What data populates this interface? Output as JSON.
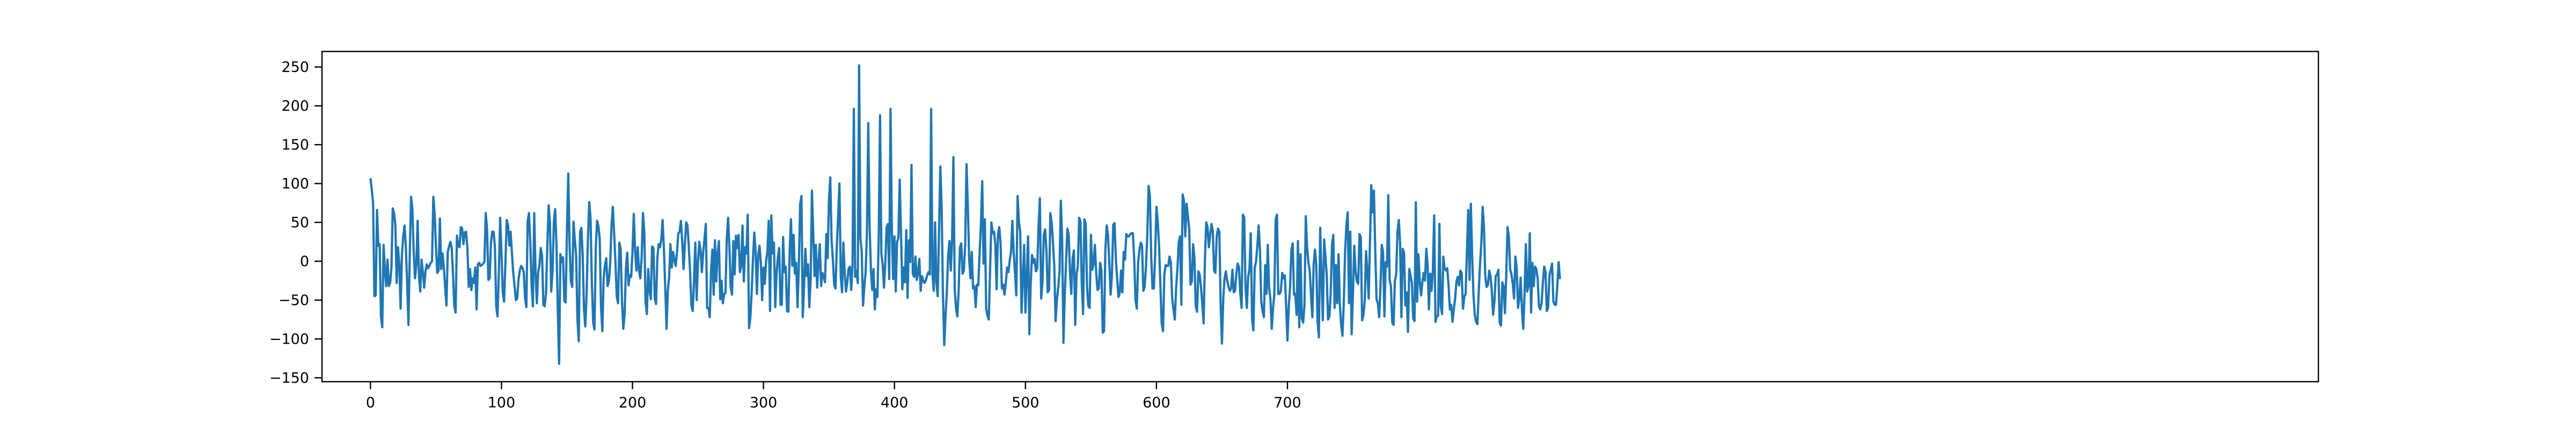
{
  "chart_data": {
    "type": "line",
    "title": "",
    "xlabel": "",
    "ylabel": "",
    "xlim": [
      -37,
      1487
    ],
    "ylim": [
      -155,
      270
    ],
    "x_ticks": [
      0,
      100,
      200,
      300,
      400,
      500,
      600,
      700
    ],
    "x_tick_labels": [
      "0",
      "100",
      "200",
      "300",
      "400",
      "500",
      "600",
      "700"
    ],
    "y_ticks": [
      -150,
      -100,
      -50,
      0,
      50,
      100,
      150,
      200,
      250
    ],
    "y_tick_labels": [
      "−150",
      "−100",
      "−50",
      "0",
      "50",
      "100",
      "150",
      "200",
      "250"
    ],
    "grid": false,
    "legend": "none",
    "series": [
      {
        "color": "#1f77b4",
        "x_start": 0,
        "x_step": 1,
        "values": [
          107,
          92,
          75,
          -45,
          -44,
          66,
          20,
          22,
          -71,
          -85,
          21,
          -11,
          -32,
          2,
          -32,
          -28,
          -9,
          68,
          62,
          47,
          -28,
          18,
          -4,
          -61,
          8,
          32,
          46,
          19,
          -29,
          -82,
          9,
          83,
          67,
          12,
          -22,
          -5,
          52,
          -18,
          -39,
          2,
          -14,
          -34,
          -13,
          -4,
          -9,
          -6,
          -2,
          0,
          83,
          60,
          18,
          -15,
          -12,
          55,
          -10,
          10,
          -8,
          -33,
          -57,
          12,
          19,
          25,
          17,
          -16,
          -58,
          -66,
          33,
          20,
          18,
          44,
          42,
          22,
          37,
          38,
          17,
          -33,
          -10,
          -37,
          -22,
          -28,
          -8,
          -62,
          -4,
          -2,
          -6,
          -5,
          -3,
          -1,
          62,
          42,
          -24,
          -22,
          24,
          38,
          38,
          18,
          -58,
          -71,
          -14,
          56,
          10,
          -40,
          -52,
          -3,
          53,
          47,
          20,
          38,
          10,
          -15,
          -32,
          -50,
          -48,
          -24,
          -12,
          -6,
          -8,
          -14,
          -47,
          -59,
          51,
          62,
          25,
          -31,
          -58,
          62,
          -13,
          -54,
          -14,
          -5,
          17,
          7,
          -56,
          -58,
          -41,
          19,
          72,
          50,
          -39,
          -11,
          51,
          67,
          20,
          -63,
          -132,
          9,
          -1,
          5,
          -51,
          -53,
          40,
          113,
          20,
          -26,
          -33,
          51,
          27,
          8,
          -75,
          -103,
          38,
          43,
          8,
          -62,
          -84,
          -42,
          28,
          76,
          56,
          -27,
          -79,
          -88,
          17,
          52,
          45,
          29,
          -59,
          -90,
          -22,
          -5,
          4,
          -32,
          -26,
          -3,
          46,
          70,
          36,
          0,
          -45,
          -54,
          24,
          16,
          -52,
          -87,
          -69,
          -9,
          11,
          -31,
          -18,
          -20,
          11,
          61,
          14,
          -12,
          18,
          -12,
          -22,
          5,
          62,
          39,
          -52,
          -68,
          -10,
          -37,
          -49,
          19,
          17,
          -48,
          -55,
          4,
          22,
          18,
          28,
          53,
          16,
          -32,
          -87,
          -38,
          -20,
          22,
          -8,
          12,
          2,
          -6,
          12,
          36,
          38,
          52,
          25,
          -10,
          22,
          50,
          46,
          19,
          -14,
          -57,
          -64,
          -24,
          24,
          -50,
          -2,
          25,
          14,
          -14,
          12,
          29,
          48,
          -60,
          -60,
          -72,
          -13,
          15,
          -43,
          27,
          -26,
          10,
          26,
          -49,
          -25,
          -54,
          -43,
          -40,
          29,
          56,
          19,
          -34,
          -43,
          26,
          -17,
          33,
          17,
          34,
          -14,
          -7,
          46,
          -26,
          18,
          10,
          60,
          -86,
          -73,
          -40,
          3,
          37,
          12,
          -42,
          8,
          20,
          -2,
          -50,
          -8,
          -29,
          0,
          12,
          52,
          -64,
          59,
          10,
          24,
          -59,
          -16,
          5,
          17,
          -56,
          -56,
          31,
          -14,
          -7,
          -64,
          -65,
          14,
          54,
          -6,
          34,
          -16,
          -2,
          -59,
          -7,
          73,
          84,
          -72,
          -32,
          16,
          -19,
          -4,
          -59,
          -25,
          91,
          37,
          -19,
          21,
          -34,
          -2,
          22,
          -32,
          -15,
          -20,
          -27,
          35,
          4,
          79,
          108,
          27,
          2,
          -31,
          -35,
          19,
          58,
          100,
          -19,
          -40,
          24,
          -14,
          -39,
          -27,
          -9,
          -7,
          -37,
          -4,
          196,
          -20,
          -12,
          -28,
          252,
          30,
          13,
          -57,
          -33,
          -14,
          38,
          178,
          47,
          -10,
          -37,
          -10,
          -62,
          -36,
          -46,
          32,
          188,
          10,
          -4,
          -34,
          -2,
          44,
          48,
          -23,
          196,
          41,
          -23,
          32,
          -39,
          25,
          30,
          105,
          35,
          -36,
          -8,
          -27,
          40,
          -47,
          27,
          -1,
          124,
          -16,
          -20,
          6,
          -24,
          -15,
          3,
          -38,
          -19,
          -25,
          -28,
          -24,
          -18,
          -14,
          -17,
          196,
          -16,
          -38,
          50,
          -27,
          -45,
          36,
          122,
          71,
          -42,
          -108,
          -70,
          -39,
          8,
          26,
          -12,
          28,
          134,
          -36,
          -61,
          -71,
          -38,
          18,
          23,
          -16,
          -12,
          22,
          125,
          72,
          4,
          -22,
          12,
          -35,
          -32,
          -59,
          -30,
          -31,
          10,
          48,
          103,
          -3,
          54,
          -61,
          -70,
          -75,
          -11,
          50,
          36,
          38,
          22,
          -36,
          34,
          44,
          23,
          -35,
          -30,
          -43,
          -28,
          -8,
          -14,
          1,
          12,
          52,
          12,
          -14,
          -44,
          84,
          51,
          38,
          -66,
          -24,
          21,
          -66,
          -20,
          32,
          -94,
          -29,
          8,
          -2,
          3,
          -13,
          -9,
          46,
          81,
          -48,
          -26,
          34,
          41,
          15,
          -40,
          -37,
          62,
          50,
          24,
          -6,
          -77,
          -50,
          -34,
          -14,
          78,
          28,
          -105,
          -44,
          -1,
          42,
          34,
          -15,
          -42,
          4,
          14,
          -82,
          -17,
          -6,
          56,
          51,
          -30,
          -68,
          54,
          48,
          -32,
          -58,
          -60,
          34,
          -11,
          -3,
          21,
          -15,
          -37,
          -35,
          -2,
          -12,
          -92,
          -90,
          15,
          46,
          34,
          -2,
          -43,
          -18,
          47,
          49,
          4,
          -22,
          -46,
          -40,
          -12,
          -40,
          12,
          2,
          35,
          32,
          32,
          35,
          36,
          36,
          4,
          -50,
          -61,
          -2,
          14,
          24,
          20,
          -38,
          -33,
          -7,
          34,
          97,
          84,
          6,
          -35,
          -35,
          8,
          70,
          51,
          20,
          -31,
          -80,
          -90,
          -18,
          -5,
          -6,
          -6,
          6,
          -2,
          -48,
          -62,
          -75,
          -35,
          -10,
          24,
          32,
          -56,
          86,
          78,
          32,
          74,
          58,
          41,
          -30,
          -26,
          22,
          4,
          -58,
          -65,
          -13,
          -17,
          -33,
          -55,
          -80,
          2,
          50,
          44,
          18,
          34,
          48,
          39,
          -12,
          -15,
          32,
          42,
          38,
          -56,
          -106,
          -48,
          -22,
          -13,
          -25,
          -33,
          -38,
          -35,
          -11,
          -40,
          -38,
          -16,
          -3,
          -8,
          -41,
          -60,
          60,
          56,
          -34,
          -60,
          -20,
          -10,
          36,
          -74,
          -89,
          -8,
          -1,
          19,
          46,
          15,
          -52,
          -64,
          -72,
          -5,
          -42,
          21,
          -35,
          -48,
          -87,
          -61,
          -42,
          54,
          60,
          -42,
          -42,
          -38,
          -15,
          -22,
          -18,
          -58,
          -102,
          -59,
          -33,
          14,
          23,
          -43,
          -42,
          -69,
          26,
          -85,
          9,
          -74,
          -79,
          -56,
          58,
          18,
          -2,
          -12,
          -44,
          -72,
          -4,
          15,
          -4,
          -78,
          -98,
          43,
          -22,
          -76,
          28,
          6,
          -18,
          -75,
          -71,
          -42,
          21,
          34,
          -60,
          -5,
          -54,
          9,
          -56,
          -82,
          -96,
          -53,
          12,
          46,
          63,
          -54,
          38,
          -94,
          -43,
          20,
          -13,
          -26,
          -29,
          35,
          31,
          -76,
          -69,
          -52,
          13,
          -13,
          -48,
          25,
          98,
          63,
          91,
          16,
          -49,
          -54,
          -72,
          -34,
          21,
          12,
          -71,
          -1,
          -7,
          85,
          -24,
          -32,
          -79,
          -82,
          -26,
          -17,
          38,
          53,
          23,
          -72,
          16,
          11,
          -57,
          -40,
          -91,
          -10,
          -19,
          -28,
          -74,
          -77,
          76,
          -52,
          9,
          -26,
          -44,
          -27,
          -15,
          -25,
          16,
          -5,
          -62,
          -16,
          -38,
          -12,
          59,
          -78,
          -71,
          -70,
          48,
          -57,
          -68,
          6,
          -9,
          -12,
          -9,
          -31,
          -62,
          -56,
          -78,
          -62,
          -48,
          -26,
          -20,
          -31,
          -12,
          -15,
          -61,
          -46,
          -42,
          12,
          66,
          -24,
          74,
          6,
          -43,
          -69,
          -78,
          -81,
          -40,
          -4,
          23,
          70,
          44,
          -19,
          -33,
          -31,
          -12,
          -19,
          -38,
          -69,
          -52,
          -19,
          -17,
          -11,
          -79,
          -83,
          -27,
          -32,
          -67,
          -20,
          44,
          32,
          -10,
          -17,
          -29,
          -48,
          6,
          -9,
          -60,
          -48,
          -21,
          -62,
          -87,
          -42,
          22,
          -39,
          -32,
          36,
          -66,
          -2,
          -32,
          -7,
          -10,
          -22,
          -58,
          -62,
          -54,
          -27,
          -7,
          -14,
          -64,
          -60,
          -18,
          -11,
          -3,
          -52,
          -56,
          -56,
          -32,
          -1,
          -23
        ]
      }
    ]
  }
}
